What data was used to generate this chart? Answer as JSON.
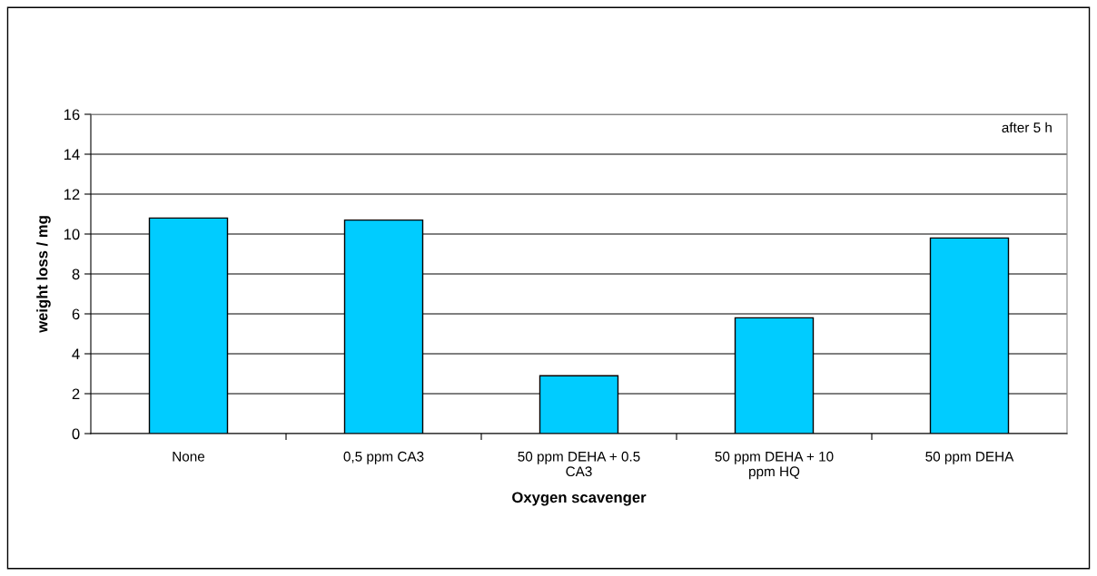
{
  "chart_data": {
    "type": "bar",
    "categories": [
      "None",
      "0,5 ppm CA3",
      "50 ppm DEHA + 0.5\nCA3",
      "50 ppm DEHA + 10\nppm HQ",
      "50 ppm DEHA"
    ],
    "values": [
      10.8,
      10.7,
      2.9,
      5.8,
      9.8
    ],
    "color": "#00ccff",
    "xlabel": "Oxygen scavenger",
    "ylabel": "weight loss / mg",
    "annotations": [
      "after 5 h"
    ],
    "ylim": [
      0,
      16
    ],
    "yticks": [
      0,
      2,
      4,
      6,
      8,
      10,
      12,
      14,
      16
    ],
    "grid": "y",
    "legend": false
  }
}
